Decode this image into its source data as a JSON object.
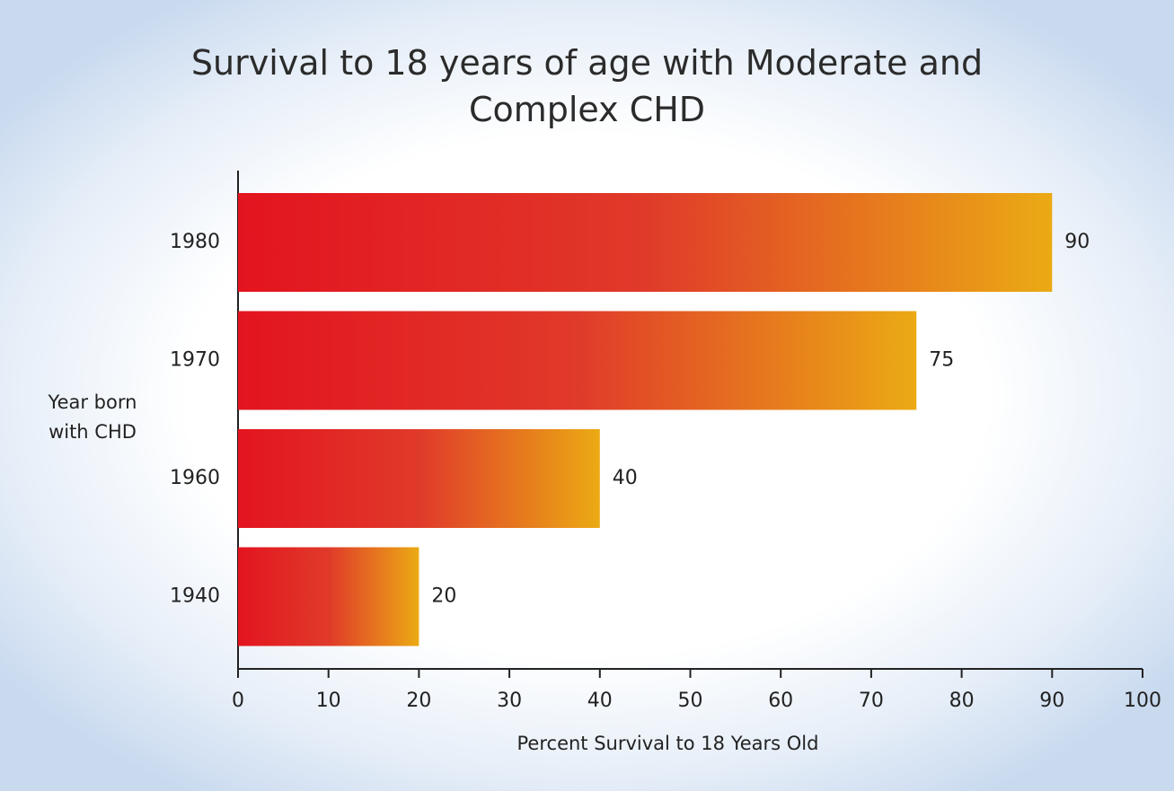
{
  "chart_data": {
    "type": "barh",
    "title": "Survival to 18 years of age with Moderate and Complex CHD",
    "ylabel": "Year born with CHD",
    "xlabel": "Percent Survival to 18 Years Old",
    "categories": [
      "1980",
      "1970",
      "1960",
      "1940"
    ],
    "values": [
      90,
      75,
      40,
      20
    ],
    "color_start": "#e3141f",
    "color_end": "#ebaa14",
    "xlim": [
      0,
      100
    ],
    "xticks": [
      0,
      10,
      20,
      30,
      40,
      50,
      60,
      70,
      80,
      90,
      100
    ],
    "grid": false
  }
}
